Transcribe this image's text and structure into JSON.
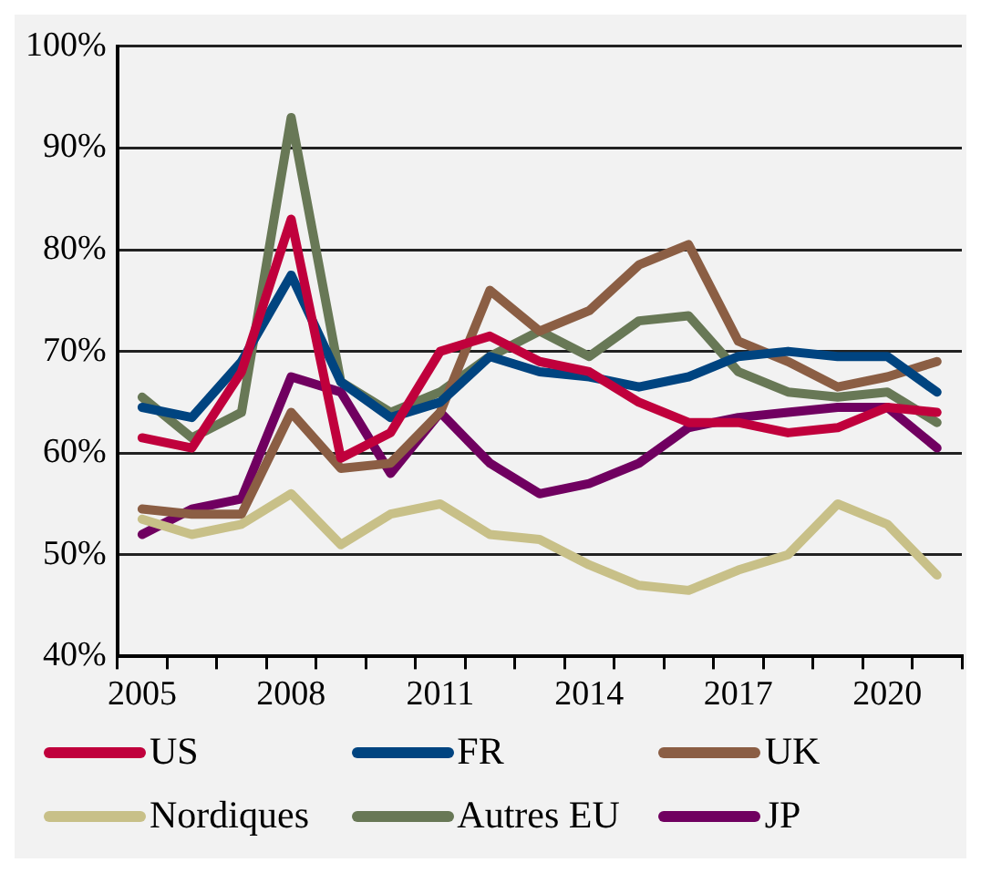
{
  "chart_data": {
    "type": "line",
    "categories": [
      "2005",
      null,
      null,
      "2008",
      null,
      null,
      "2011",
      null,
      null,
      "2014",
      null,
      null,
      "2017",
      null,
      null,
      "2020",
      null
    ],
    "series": [
      {
        "name": "US",
        "color": "#c0003c",
        "values": [
          61.5,
          60.5,
          68,
          83,
          59.5,
          62,
          70,
          71.5,
          69,
          68,
          65,
          63,
          63,
          62,
          62.5,
          64.5,
          64
        ]
      },
      {
        "name": "FR",
        "color": "#004480",
        "values": [
          64.5,
          63.5,
          69,
          77.5,
          67,
          63.5,
          65,
          69.5,
          68,
          67.5,
          66.5,
          67.5,
          69.5,
          70,
          69.5,
          69.5,
          66
        ]
      },
      {
        "name": "UK",
        "color": "#8b5e44",
        "values": [
          54.5,
          54,
          54,
          64,
          58.5,
          59,
          64,
          76,
          72,
          74,
          78.5,
          80.5,
          71,
          69,
          66.5,
          67.5,
          69
        ]
      },
      {
        "name": "Nordiques",
        "color": "#c8c088",
        "values": [
          53.5,
          52,
          53,
          56,
          51,
          54,
          55,
          52,
          51.5,
          49,
          47,
          46.5,
          48.5,
          50,
          55,
          53,
          48
        ]
      },
      {
        "name": "Autres EU",
        "color": "#687856",
        "values": [
          65.5,
          61.5,
          64,
          93,
          67,
          64,
          66,
          69.5,
          72,
          69.5,
          73,
          73.5,
          68,
          66,
          65.5,
          66,
          63
        ]
      },
      {
        "name": "JP",
        "color": "#700060",
        "values": [
          52,
          54.5,
          55.5,
          67.5,
          66,
          58,
          64,
          59,
          56,
          57,
          59,
          62.5,
          63.5,
          64,
          64.5,
          64.5,
          60.5
        ]
      }
    ],
    "ylim": [
      40,
      100
    ],
    "yticks": [
      {
        "value": 40,
        "label": "40%"
      },
      {
        "value": 50,
        "label": "50%"
      },
      {
        "value": 60,
        "label": "60%"
      },
      {
        "value": 70,
        "label": "70%"
      },
      {
        "value": 80,
        "label": "80%"
      },
      {
        "value": 90,
        "label": "90%"
      },
      {
        "value": 100,
        "label": "100%"
      }
    ],
    "grid": "y",
    "legend": "bottom",
    "marker": "none",
    "line_style": "solid"
  }
}
